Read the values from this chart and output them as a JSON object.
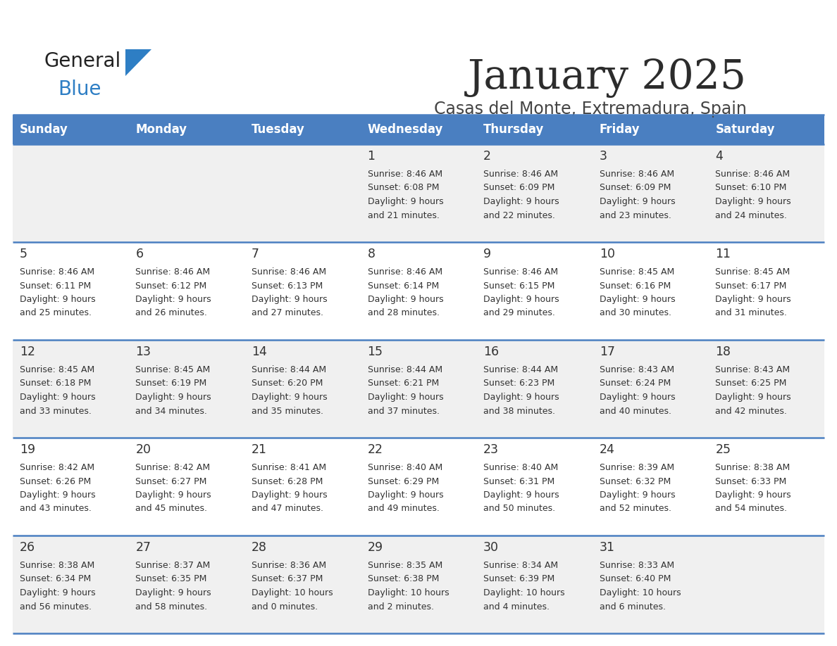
{
  "title": "January 2025",
  "subtitle": "Casas del Monte, Extremadura, Spain",
  "days_of_week": [
    "Sunday",
    "Monday",
    "Tuesday",
    "Wednesday",
    "Thursday",
    "Friday",
    "Saturday"
  ],
  "header_bg": "#4a7fc1",
  "header_text": "#ffffff",
  "row_bg_odd": "#f0f0f0",
  "row_bg_even": "#ffffff",
  "cell_text": "#333333",
  "date_text": "#333333",
  "separator_color": "#4a7fc1",
  "logo_general_color": "#222222",
  "logo_blue_color": "#2e7ec4",
  "weeks": [
    {
      "days": [
        {
          "date": "",
          "sunrise": "",
          "sunset": "",
          "daylight": ""
        },
        {
          "date": "",
          "sunrise": "",
          "sunset": "",
          "daylight": ""
        },
        {
          "date": "",
          "sunrise": "",
          "sunset": "",
          "daylight": ""
        },
        {
          "date": "1",
          "sunrise": "8:46 AM",
          "sunset": "6:08 PM",
          "daylight": "9 hours\nand 21 minutes."
        },
        {
          "date": "2",
          "sunrise": "8:46 AM",
          "sunset": "6:09 PM",
          "daylight": "9 hours\nand 22 minutes."
        },
        {
          "date": "3",
          "sunrise": "8:46 AM",
          "sunset": "6:09 PM",
          "daylight": "9 hours\nand 23 minutes."
        },
        {
          "date": "4",
          "sunrise": "8:46 AM",
          "sunset": "6:10 PM",
          "daylight": "9 hours\nand 24 minutes."
        }
      ]
    },
    {
      "days": [
        {
          "date": "5",
          "sunrise": "8:46 AM",
          "sunset": "6:11 PM",
          "daylight": "9 hours\nand 25 minutes."
        },
        {
          "date": "6",
          "sunrise": "8:46 AM",
          "sunset": "6:12 PM",
          "daylight": "9 hours\nand 26 minutes."
        },
        {
          "date": "7",
          "sunrise": "8:46 AM",
          "sunset": "6:13 PM",
          "daylight": "9 hours\nand 27 minutes."
        },
        {
          "date": "8",
          "sunrise": "8:46 AM",
          "sunset": "6:14 PM",
          "daylight": "9 hours\nand 28 minutes."
        },
        {
          "date": "9",
          "sunrise": "8:46 AM",
          "sunset": "6:15 PM",
          "daylight": "9 hours\nand 29 minutes."
        },
        {
          "date": "10",
          "sunrise": "8:45 AM",
          "sunset": "6:16 PM",
          "daylight": "9 hours\nand 30 minutes."
        },
        {
          "date": "11",
          "sunrise": "8:45 AM",
          "sunset": "6:17 PM",
          "daylight": "9 hours\nand 31 minutes."
        }
      ]
    },
    {
      "days": [
        {
          "date": "12",
          "sunrise": "8:45 AM",
          "sunset": "6:18 PM",
          "daylight": "9 hours\nand 33 minutes."
        },
        {
          "date": "13",
          "sunrise": "8:45 AM",
          "sunset": "6:19 PM",
          "daylight": "9 hours\nand 34 minutes."
        },
        {
          "date": "14",
          "sunrise": "8:44 AM",
          "sunset": "6:20 PM",
          "daylight": "9 hours\nand 35 minutes."
        },
        {
          "date": "15",
          "sunrise": "8:44 AM",
          "sunset": "6:21 PM",
          "daylight": "9 hours\nand 37 minutes."
        },
        {
          "date": "16",
          "sunrise": "8:44 AM",
          "sunset": "6:23 PM",
          "daylight": "9 hours\nand 38 minutes."
        },
        {
          "date": "17",
          "sunrise": "8:43 AM",
          "sunset": "6:24 PM",
          "daylight": "9 hours\nand 40 minutes."
        },
        {
          "date": "18",
          "sunrise": "8:43 AM",
          "sunset": "6:25 PM",
          "daylight": "9 hours\nand 42 minutes."
        }
      ]
    },
    {
      "days": [
        {
          "date": "19",
          "sunrise": "8:42 AM",
          "sunset": "6:26 PM",
          "daylight": "9 hours\nand 43 minutes."
        },
        {
          "date": "20",
          "sunrise": "8:42 AM",
          "sunset": "6:27 PM",
          "daylight": "9 hours\nand 45 minutes."
        },
        {
          "date": "21",
          "sunrise": "8:41 AM",
          "sunset": "6:28 PM",
          "daylight": "9 hours\nand 47 minutes."
        },
        {
          "date": "22",
          "sunrise": "8:40 AM",
          "sunset": "6:29 PM",
          "daylight": "9 hours\nand 49 minutes."
        },
        {
          "date": "23",
          "sunrise": "8:40 AM",
          "sunset": "6:31 PM",
          "daylight": "9 hours\nand 50 minutes."
        },
        {
          "date": "24",
          "sunrise": "8:39 AM",
          "sunset": "6:32 PM",
          "daylight": "9 hours\nand 52 minutes."
        },
        {
          "date": "25",
          "sunrise": "8:38 AM",
          "sunset": "6:33 PM",
          "daylight": "9 hours\nand 54 minutes."
        }
      ]
    },
    {
      "days": [
        {
          "date": "26",
          "sunrise": "8:38 AM",
          "sunset": "6:34 PM",
          "daylight": "9 hours\nand 56 minutes."
        },
        {
          "date": "27",
          "sunrise": "8:37 AM",
          "sunset": "6:35 PM",
          "daylight": "9 hours\nand 58 minutes."
        },
        {
          "date": "28",
          "sunrise": "8:36 AM",
          "sunset": "6:37 PM",
          "daylight": "10 hours\nand 0 minutes."
        },
        {
          "date": "29",
          "sunrise": "8:35 AM",
          "sunset": "6:38 PM",
          "daylight": "10 hours\nand 2 minutes."
        },
        {
          "date": "30",
          "sunrise": "8:34 AM",
          "sunset": "6:39 PM",
          "daylight": "10 hours\nand 4 minutes."
        },
        {
          "date": "31",
          "sunrise": "8:33 AM",
          "sunset": "6:40 PM",
          "daylight": "10 hours\nand 6 minutes."
        },
        {
          "date": "",
          "sunrise": "",
          "sunset": "",
          "daylight": ""
        }
      ]
    }
  ]
}
